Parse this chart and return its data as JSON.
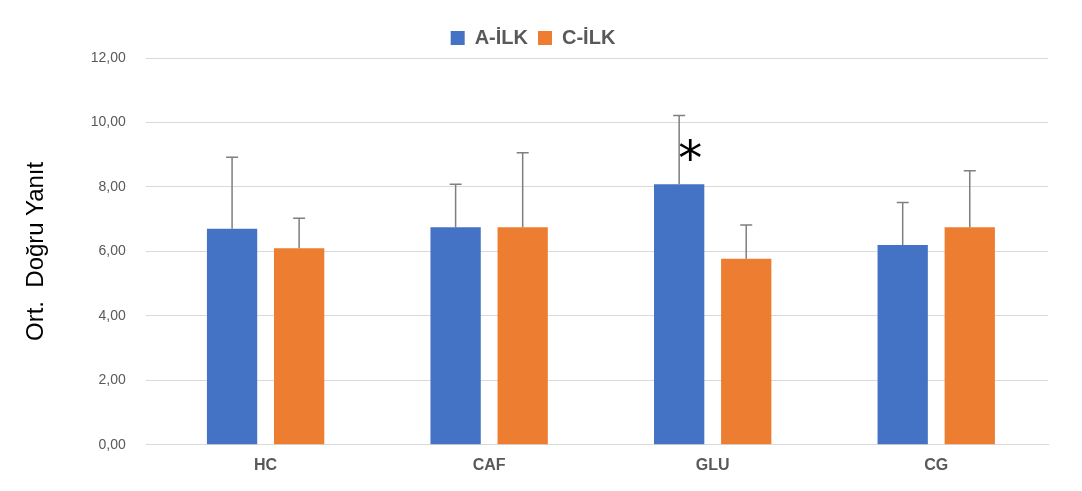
{
  "chart_data": {
    "type": "bar",
    "ylabel": "Ort.  Doğru Yanıt",
    "categories": [
      "HC",
      "CAF",
      "GLU",
      "CG"
    ],
    "series": [
      {
        "name": "A-İLK",
        "color": "#4472c4",
        "values": [
          6.7,
          6.75,
          8.08,
          6.2
        ],
        "errors": [
          [
            6.7,
            8.92
          ],
          [
            6.75,
            8.08
          ],
          [
            8.08,
            10.22
          ],
          [
            6.2,
            7.52
          ]
        ]
      },
      {
        "name": "C-İLK",
        "color": "#ed7d31",
        "values": [
          6.1,
          6.75,
          5.77,
          6.75
        ],
        "errors": [
          [
            6.1,
            7.03
          ],
          [
            6.75,
            9.06
          ],
          [
            5.77,
            6.82
          ],
          [
            6.75,
            8.5
          ]
        ]
      }
    ],
    "annotations": [
      "*"
    ],
    "ylim": [
      0,
      12
    ],
    "yticks": [
      {
        "value": 0,
        "label": "0,00"
      },
      {
        "value": 2,
        "label": "2,00"
      },
      {
        "value": 4,
        "label": "4,00"
      },
      {
        "value": 6,
        "label": "6,00"
      },
      {
        "value": 8,
        "label": "8,00"
      },
      {
        "value": 10,
        "label": "10,00"
      },
      {
        "value": 12,
        "label": "12,00"
      }
    ],
    "grid": "y",
    "legend": "top"
  }
}
